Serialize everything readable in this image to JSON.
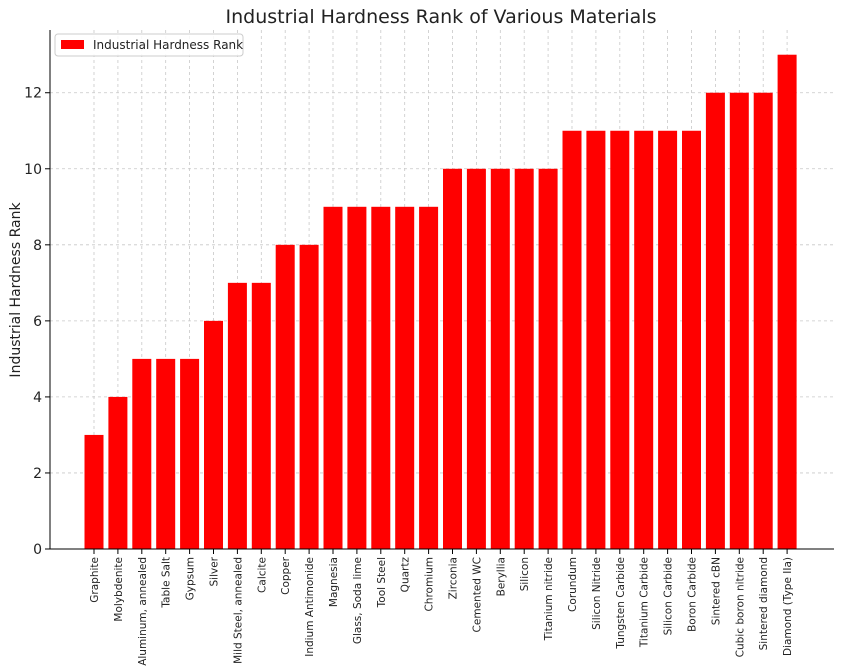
{
  "chart_data": {
    "type": "bar",
    "title": "Industrial Hardness Rank of Various Materials",
    "xlabel": "",
    "ylabel": "Industrial Hardness Rank",
    "ylim": [
      0,
      13.65
    ],
    "yticks": [
      0,
      2,
      4,
      6,
      8,
      10,
      12
    ],
    "grid": true,
    "legend_position": "top-left",
    "bar_color": "#ff0000",
    "categories": [
      "Graphite",
      "Molybdenite",
      "Aluminum, annealed",
      "Table Salt",
      "Gypsum",
      "Silver",
      "Mild Steel, annealed",
      "Calcite",
      "Copper",
      "Indium Antimonide",
      "Magnesia",
      "Glass, Soda lime",
      "Tool Steel",
      "Quartz",
      "Chromium",
      "Zirconia",
      "Cemented WC",
      "Beryllia",
      "Silicon",
      "Titanium nitride",
      "Corundum",
      "Silicon Nitride",
      "Tungsten Carbide",
      "Titanium Carbide",
      "Silicon Carbide",
      "Boron Carbide",
      "Sintered cBN",
      "Cubic boron nitride",
      "Sintered diamond",
      "Diamond (Type IIa)"
    ],
    "series": [
      {
        "name": "Industrial Hardness Rank",
        "values": [
          3,
          4,
          5,
          5,
          5,
          6,
          7,
          7,
          8,
          8,
          9,
          9,
          9,
          9,
          9,
          10,
          10,
          10,
          10,
          10,
          11,
          11,
          11,
          11,
          11,
          11,
          12,
          12,
          12,
          13
        ]
      }
    ]
  }
}
